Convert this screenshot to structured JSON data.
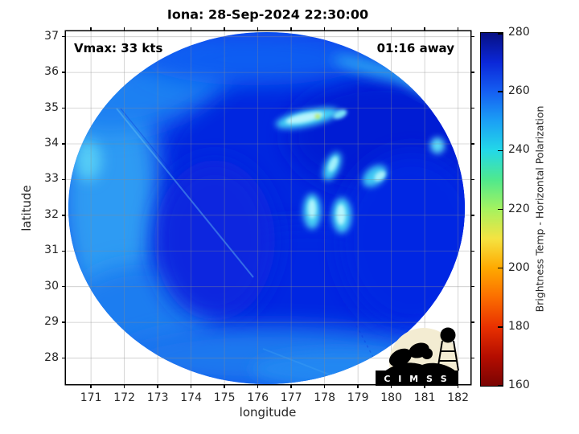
{
  "figure": {
    "title": "Iona: 28-Sep-2024 22:30:00",
    "vmax_label": "Vmax: 33 kts",
    "eta_label": "01:16 away",
    "xlabel": "longitude",
    "ylabel": "latitude",
    "logo_text": "C I M S S"
  },
  "chart_data": {
    "type": "heatmap",
    "title": "Iona: 28-Sep-2024 22:30:00",
    "subtitle_left": "Vmax: 33 kts",
    "subtitle_right": "01:16 away",
    "xlabel": "longitude",
    "ylabel": "latitude",
    "x_ticks": [
      171,
      172,
      173,
      174,
      175,
      176,
      177,
      178,
      179,
      180,
      181,
      182
    ],
    "y_ticks": [
      28,
      29,
      30,
      31,
      32,
      33,
      34,
      35,
      36,
      37
    ],
    "xlim": [
      170.25,
      182.37
    ],
    "ylim": [
      27.27,
      37.15
    ],
    "grid": true,
    "colorbar": {
      "label": "Brightness Temp - Horizontal Polarization",
      "ticks": [
        160,
        180,
        200,
        220,
        240,
        260,
        280
      ],
      "range": [
        160,
        280
      ],
      "colormap": "jet-reversed",
      "stops": [
        {
          "t": 160,
          "color": "#7a0403"
        },
        {
          "t": 170,
          "color": "#b50d00"
        },
        {
          "t": 180,
          "color": "#e93100"
        },
        {
          "t": 190,
          "color": "#fb6d00"
        },
        {
          "t": 200,
          "color": "#ffa900"
        },
        {
          "t": 210,
          "color": "#f5e341"
        },
        {
          "t": 220,
          "color": "#a6f25f"
        },
        {
          "t": 230,
          "color": "#50e98c"
        },
        {
          "t": 240,
          "color": "#23d8e8"
        },
        {
          "t": 250,
          "color": "#1ba0f5"
        },
        {
          "t": 260,
          "color": "#155ff2"
        },
        {
          "t": 270,
          "color": "#0b27d8"
        },
        {
          "t": 280,
          "color": "#071083"
        }
      ]
    },
    "swath": {
      "shape": "circular",
      "center_lon": 176.3,
      "center_lat": 32.2,
      "radius_deg": 5.95,
      "background_tb_range_K": [
        252,
        276
      ]
    },
    "features": [
      {
        "type": "convective-streak",
        "lon": 177.5,
        "lat": 34.7,
        "tb_K": 215
      },
      {
        "type": "bright-cell",
        "lon": 178.5,
        "lat": 34.8,
        "tb_K": 232
      },
      {
        "type": "bright-cell",
        "lon": 181.4,
        "lat": 33.9,
        "tb_K": 235
      },
      {
        "type": "bright-cell",
        "lon": 178.2,
        "lat": 33.2,
        "tb_K": 235
      },
      {
        "type": "bright-cell",
        "lon": 179.5,
        "lat": 32.9,
        "tb_K": 232
      },
      {
        "type": "bright-cell",
        "lon": 177.6,
        "lat": 32.1,
        "tb_K": 234
      },
      {
        "type": "bright-cell",
        "lon": 178.5,
        "lat": 32.0,
        "tb_K": 230
      },
      {
        "type": "light-band",
        "lon": 171.0,
        "lat": 32.5,
        "tb_K": 248
      },
      {
        "type": "scan-artifact-line",
        "from": [
          171.8,
          35.0
        ],
        "to": [
          175.9,
          30.3
        ]
      }
    ]
  }
}
